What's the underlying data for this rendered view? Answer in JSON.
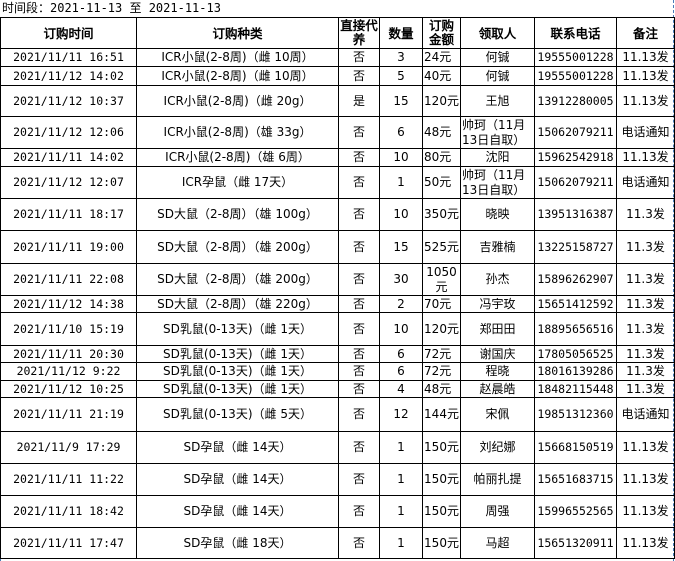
{
  "period_label": "时间段：2021-11-13 至 2021-11-13",
  "columns": [
    "订购时间",
    "订购种类",
    "直接代养",
    "数量",
    "订购金额",
    "领取人",
    "联系电话",
    "备注"
  ],
  "rows": [
    [
      "2021/11/11 16:51",
      "ICR小鼠(2-8周)（雌 10周）",
      "否",
      "3",
      "24元",
      "何铖",
      "19555001228",
      "11.13发"
    ],
    [
      "2021/11/12 14:02",
      "ICR小鼠(2-8周)（雌 10周）",
      "否",
      "5",
      "40元",
      "何铖",
      "19555001228",
      "11.13发"
    ],
    [
      "2021/11/12 10:37",
      "ICR小鼠(2-8周)（雌 20g）",
      "是",
      "15",
      "120元",
      "王旭",
      "13912280005",
      "11.13发"
    ],
    [
      "2021/11/12 12:06",
      "ICR小鼠(2-8周)（雄 33g）",
      "否",
      "6",
      "48元",
      "帅珂（11月13日自取）",
      "15062079211",
      "电话通知"
    ],
    [
      "2021/11/11 14:02",
      "ICR小鼠(2-8周)（雄 6周）",
      "否",
      "10",
      "80元",
      "沈阳",
      "15962542918",
      "11.13发"
    ],
    [
      "2021/11/12 12:07",
      "ICR孕鼠（雌 17天）",
      "否",
      "1",
      "50元",
      "帅珂（11月13日自取）",
      "15062079211",
      "电话通知"
    ],
    [
      "2021/11/11 18:17",
      "SD大鼠（2-8周）（雄 100g）",
      "否",
      "10",
      "350元",
      "晓映",
      "13951316387",
      "11.3发"
    ],
    [
      "2021/11/11 19:00",
      "SD大鼠（2-8周）（雄 200g）",
      "否",
      "15",
      "525元",
      "吉雅楠",
      "13225158727",
      "11.3发"
    ],
    [
      "2021/11/11 22:08",
      "SD大鼠（2-8周）（雄 200g）",
      "否",
      "30",
      "1050元",
      "孙杰",
      "15896262907",
      "11.3发"
    ],
    [
      "2021/11/12 14:38",
      "SD大鼠（2-8周）（雄 220g）",
      "否",
      "2",
      "70元",
      "冯宇玫",
      "15651412592",
      "11.3发"
    ],
    [
      "2021/11/10 15:19",
      "SD乳鼠(0-13天)（雌 1天）",
      "否",
      "10",
      "120元",
      "郑田田",
      "18895656516",
      "11.3发"
    ],
    [
      "2021/11/11 20:30",
      "SD乳鼠(0-13天)（雌 1天）",
      "否",
      "6",
      "72元",
      "谢国庆",
      "17805056525",
      "11.3发"
    ],
    [
      "2021/11/12 9:22",
      "SD乳鼠(0-13天)（雌 1天）",
      "否",
      "6",
      "72元",
      "程晓",
      "18016139286",
      "11.3发"
    ],
    [
      "2021/11/12 10:25",
      "SD乳鼠(0-13天)（雌 1天）",
      "否",
      "4",
      "48元",
      "赵晨皓",
      "18482115448",
      "11.3发"
    ],
    [
      "2021/11/11 21:19",
      "SD乳鼠(0-13天)（雌 5天）",
      "否",
      "12",
      "144元",
      "宋佩",
      "19851312360",
      "电话通知"
    ],
    [
      "2021/11/9 17:29",
      "SD孕鼠（雌 14天）",
      "否",
      "1",
      "150元",
      "刘纪娜",
      "15668150519",
      "11.13发"
    ],
    [
      "2021/11/11 11:22",
      "SD孕鼠（雌 14天）",
      "否",
      "1",
      "150元",
      "帕丽扎提",
      "15651683715",
      "11.13发"
    ],
    [
      "2021/11/11 18:42",
      "SD孕鼠（雌 14天）",
      "否",
      "1",
      "150元",
      "周强",
      "15996552565",
      "11.13发"
    ],
    [
      "2021/11/11 17:47",
      "SD孕鼠（雌 18天）",
      "否",
      "1",
      "150元",
      "马超",
      "15651320911",
      "11.13发"
    ]
  ]
}
